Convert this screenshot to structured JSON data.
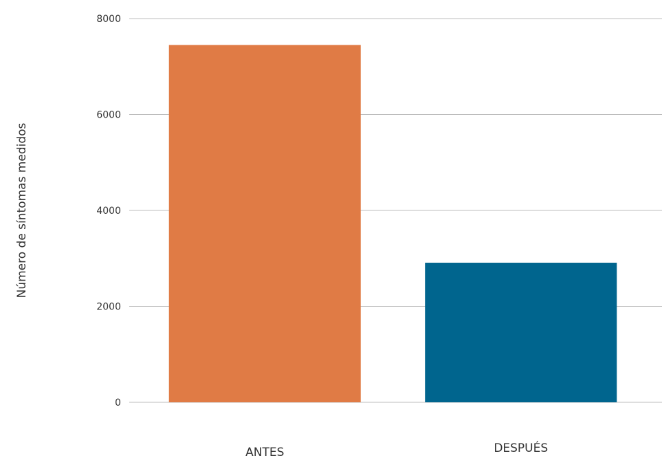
{
  "chart_data": {
    "type": "bar",
    "categories": [
      "ANTES",
      "DESPUÉS"
    ],
    "values": [
      7450,
      2910
    ],
    "colors": [
      "#E07B45",
      "#00658E"
    ],
    "ylabel": "Número de síntomas medidos",
    "ylim": [
      0,
      8000
    ],
    "yticks": [
      0,
      2000,
      4000,
      6000,
      8000
    ],
    "grid": true
  }
}
